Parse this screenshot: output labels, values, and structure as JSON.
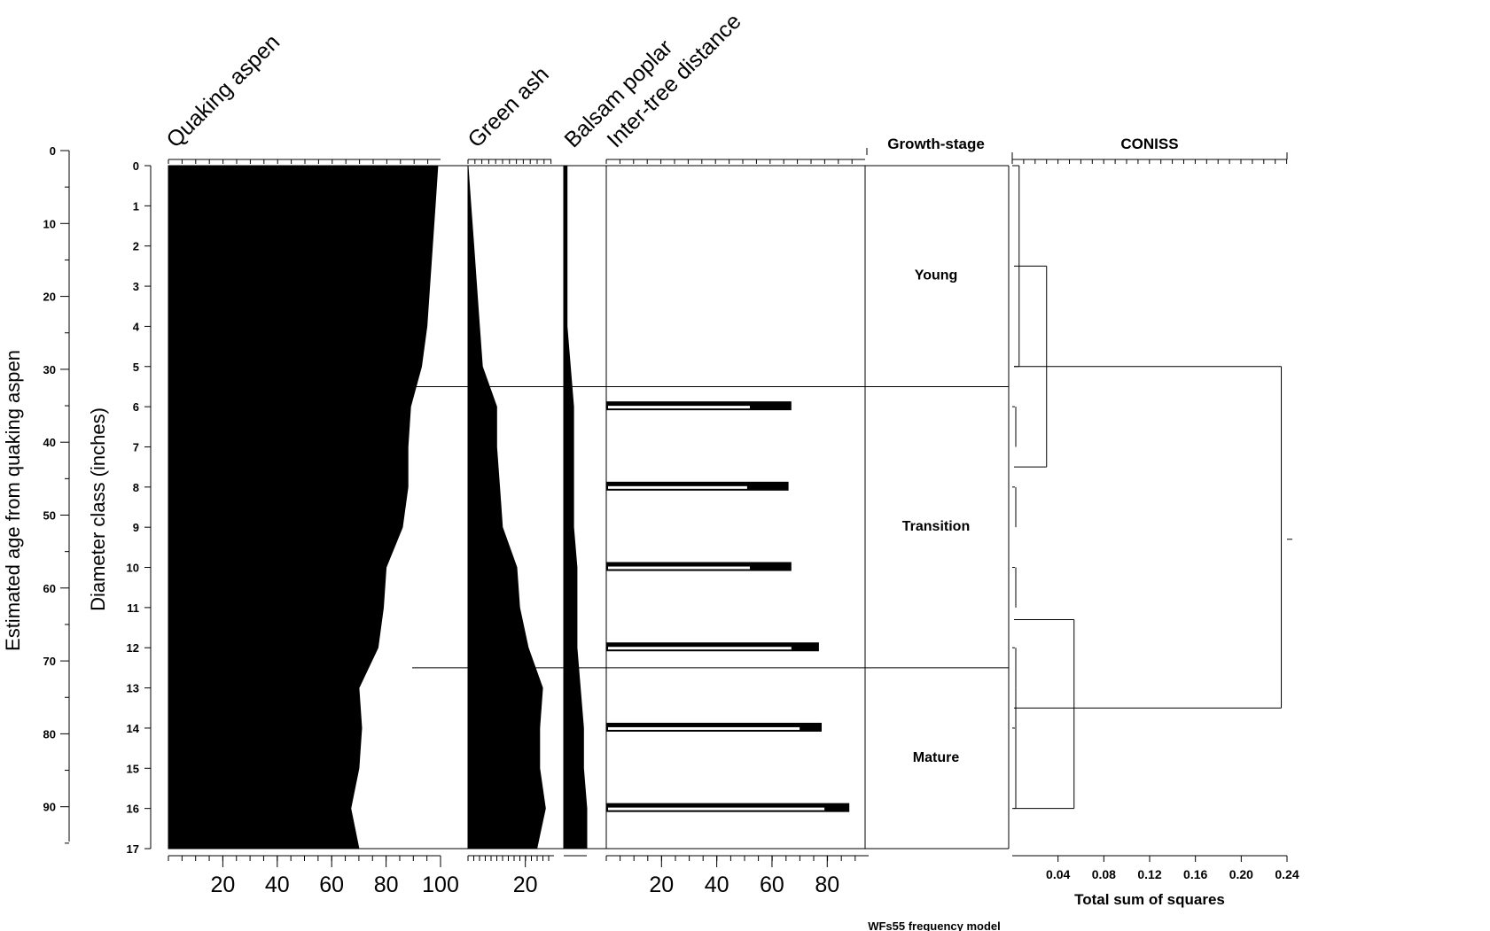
{
  "chart_data": {
    "type": "area",
    "y_axes": {
      "age": {
        "label": "Estimated age from quaking aspen",
        "range": [
          0,
          100
        ],
        "ticks": [
          "0",
          "10",
          "20",
          "30",
          "40",
          "50",
          "60",
          "70",
          "80",
          "90"
        ]
      },
      "diameter": {
        "label": "Diameter class (inches)",
        "range": [
          0,
          17
        ],
        "ticks": [
          "0",
          "1",
          "2",
          "3",
          "4",
          "5",
          "6",
          "7",
          "8",
          "9",
          "10",
          "11",
          "12",
          "13",
          "14",
          "15",
          "16",
          "17"
        ]
      }
    },
    "diameter": [
      0,
      1,
      2,
      3,
      4,
      5,
      6,
      7,
      8,
      9,
      10,
      11,
      12,
      13,
      14,
      15,
      16,
      17
    ],
    "panels": {
      "aspen": {
        "title": "Quaking aspen",
        "xlim": [
          0,
          100
        ],
        "tick_labels": [
          "20",
          "40",
          "60",
          "80",
          "100"
        ],
        "values": [
          99,
          98,
          97,
          96,
          95,
          93,
          89,
          88,
          88,
          86,
          80,
          79,
          77,
          70,
          71,
          70,
          67,
          70
        ]
      },
      "ash": {
        "title": "Green ash",
        "xlim": [
          0,
          30
        ],
        "tick_labels": [
          "20"
        ],
        "values": [
          0,
          1,
          2,
          3,
          4,
          5,
          10,
          10,
          11,
          12,
          17,
          18,
          21,
          26,
          25,
          25,
          27,
          24
        ]
      },
      "balsam": {
        "title": "Balsam poplar",
        "values": [
          1,
          1,
          1,
          1,
          1,
          2,
          3,
          3,
          3,
          3,
          4,
          4,
          4,
          5,
          6,
          6,
          7,
          7
        ]
      },
      "distance": {
        "title": "Inter-tree distance",
        "xlim": [
          0,
          90
        ],
        "tick_labels": [
          "20",
          "40",
          "60",
          "80"
        ],
        "rows": [
          6,
          8,
          10,
          12,
          14,
          16
        ],
        "outer": [
          67,
          66,
          67,
          77,
          78,
          88
        ],
        "inner": [
          52,
          51,
          52,
          67,
          70,
          79
        ]
      }
    },
    "growth_stage": {
      "title": "Growth-stage",
      "stages": [
        {
          "name": "Young",
          "from": 0,
          "to": 5.5
        },
        {
          "name": "Transition",
          "from": 5.5,
          "to": 12.5
        },
        {
          "name": "Mature",
          "from": 12.5,
          "to": 17
        }
      ]
    },
    "coniss": {
      "title": "CONISS",
      "xlabel": "Total sum of squares",
      "xlim": [
        0,
        0.24
      ],
      "tick_labels": [
        "0.04",
        "0.08",
        "0.12",
        "0.16",
        "0.20",
        "0.24"
      ],
      "merges": [
        {
          "d": 0.006,
          "a": 0,
          "b": 5,
          "y": 2.5
        },
        {
          "d": 0.03,
          "a": 2.5,
          "b": 7.5,
          "y": 5
        },
        {
          "d": 0.235,
          "a": 5,
          "b": 13.5,
          "y": 9.3
        },
        {
          "d": 0.054,
          "a": 11.3,
          "b": 16,
          "y": 13.5
        }
      ]
    },
    "footer": "WFs55 frequency model"
  }
}
